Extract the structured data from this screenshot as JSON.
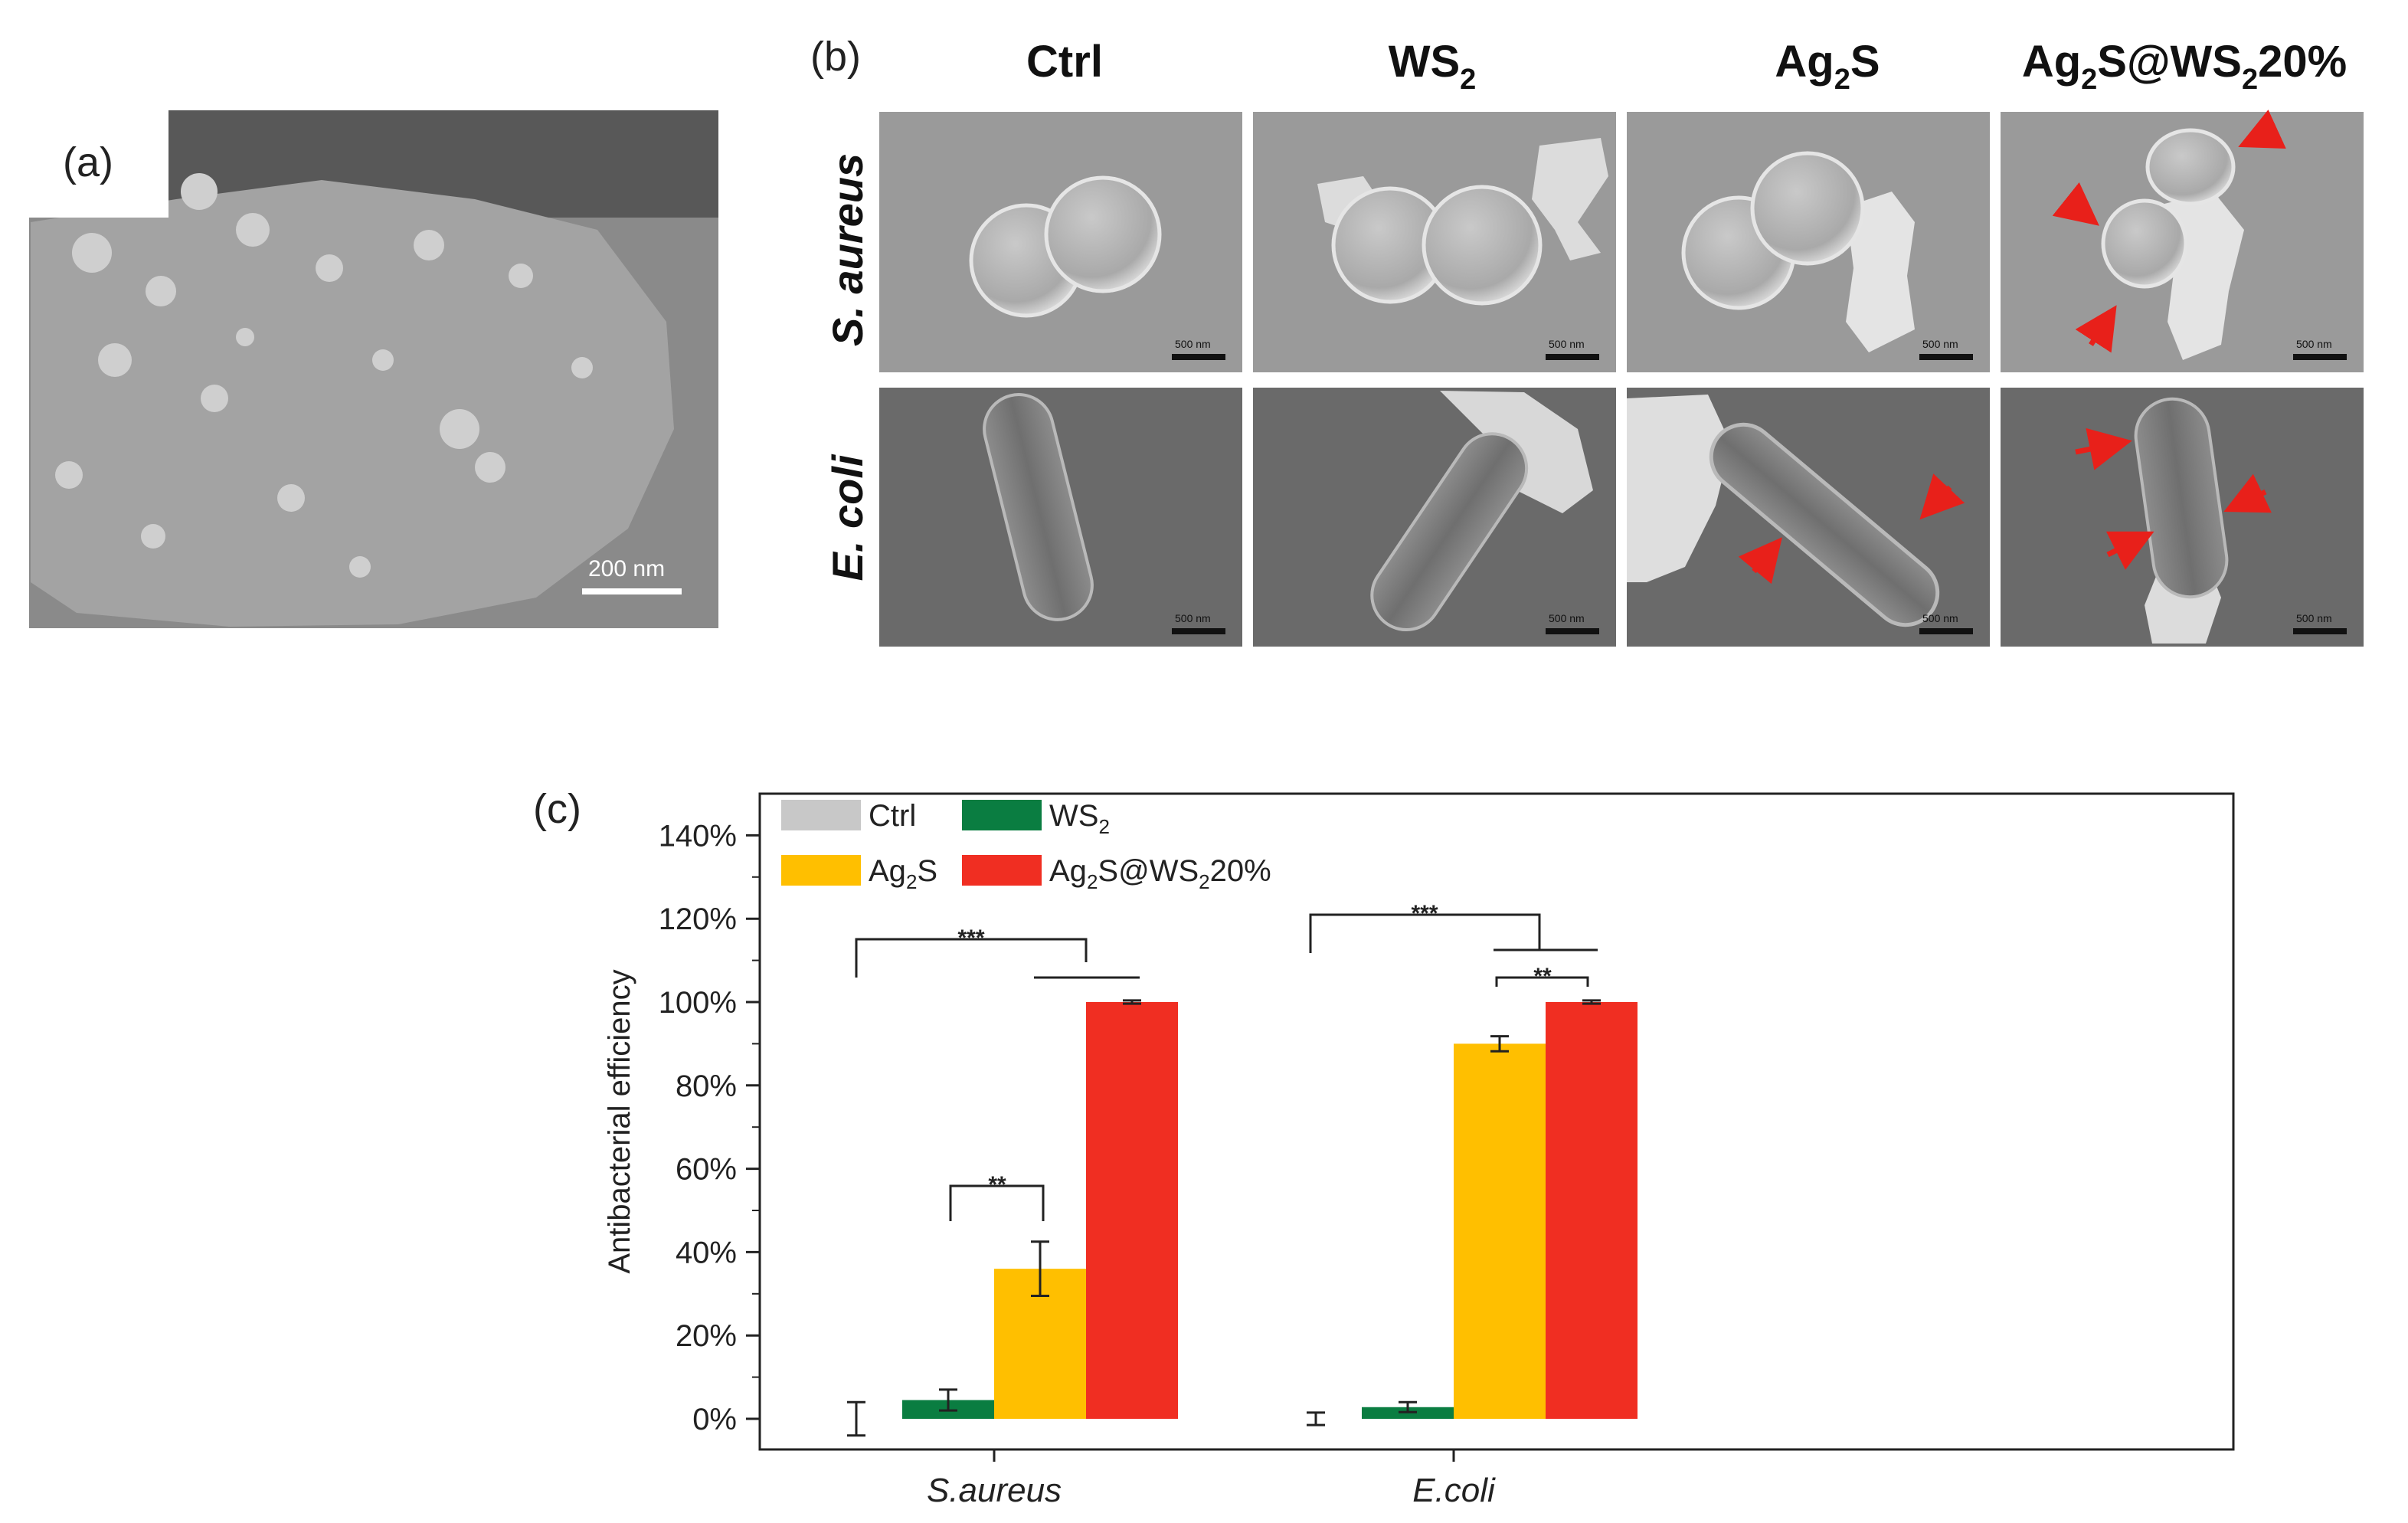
{
  "panel_a": {
    "label": "(a)",
    "scale_bar": "200 nm"
  },
  "panel_b": {
    "label": "(b)",
    "columns": [
      "Ctrl",
      "WS",
      "Ag",
      "Ag"
    ],
    "col_sub": {
      "ws_sub": "2",
      "ag_sub": "2",
      "ag_suffix": "S",
      "comp_prefix": "Ag",
      "comp_sub1": "2",
      "comp_mid": "S@WS",
      "comp_sub2": "2",
      "comp_suffix": "20%"
    },
    "col_labels": {
      "ctrl": "Ctrl",
      "ws_main": "WS",
      "ws_sub": "2",
      "ag_main": "Ag",
      "ag_sub": "2",
      "ag_tail": "S",
      "comp_a": "Ag",
      "comp_a_sub": "2",
      "comp_b": "S@WS",
      "comp_b_sub": "2",
      "comp_c": "20%"
    },
    "rows": [
      "S. aureus",
      "E. coli"
    ],
    "scale_bar": "500 nm",
    "arrow_color": "#e8201a"
  },
  "panel_c": {
    "label": "(c)",
    "legend_texts": {
      "ctrl": "Ctrl",
      "ws_main": "WS",
      "ws_sub": "2",
      "ag_main": "Ag",
      "ag_sub": "2",
      "ag_tail": "S",
      "comp_a": "Ag",
      "comp_a_sub": "2",
      "comp_b": "S@WS",
      "comp_b_sub": "2",
      "comp_c": "20%"
    },
    "significance": {
      "triple": "***",
      "double": "**"
    }
  },
  "chart_data": {
    "type": "bar",
    "categories": [
      "S.aureus",
      "E.coli"
    ],
    "ylabel": "Antibacterial efficiency",
    "ylim": [
      -10,
      150
    ],
    "yticks": [
      0,
      20,
      40,
      60,
      80,
      100,
      120,
      140
    ],
    "ytick_labels": [
      "0%",
      "20%",
      "40%",
      "60%",
      "80%",
      "100%",
      "120%",
      "140%"
    ],
    "legend_placement": "top-left",
    "series": [
      {
        "key": "ctrl",
        "color": "#c8c8c8",
        "values": [
          0,
          0
        ],
        "errors": [
          4,
          1.5
        ]
      },
      {
        "key": "ws",
        "color": "#0a7d41",
        "values": [
          4.5,
          2.8
        ],
        "errors": [
          2.5,
          1.2
        ]
      },
      {
        "key": "ag",
        "color": "#ffbf00",
        "values": [
          36,
          90
        ],
        "errors": [
          6.5,
          1.8
        ]
      },
      {
        "key": "comp",
        "color": "#f02e22",
        "values": [
          100,
          100
        ],
        "errors": [
          0.4,
          0.4
        ]
      }
    ]
  }
}
